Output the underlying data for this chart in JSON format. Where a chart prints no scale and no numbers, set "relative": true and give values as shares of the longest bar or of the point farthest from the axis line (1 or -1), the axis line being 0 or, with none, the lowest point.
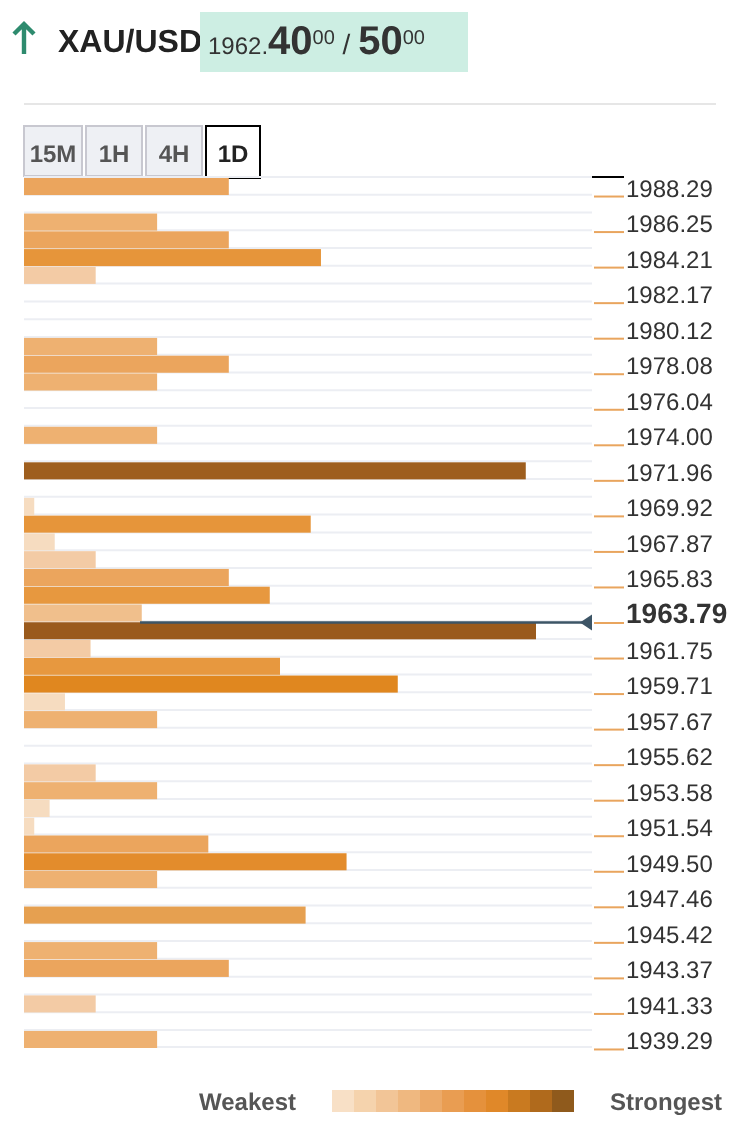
{
  "chart_data": {
    "type": "bar",
    "orientation": "horizontal",
    "relative": true,
    "title": "XAU/USD",
    "subtitle": "1962.40$^{00}$ / 50$^{00}$",
    "categories": [
      "1988.29",
      null,
      "1986.25",
      null,
      "1984.21",
      null,
      "1982.17",
      null,
      "1980.12",
      null,
      "1978.08",
      null,
      "1976.04",
      null,
      "1974.00",
      null,
      "1971.96",
      null,
      "1969.92",
      null,
      "1967.87",
      null,
      "1965.83",
      null,
      "1963.79",
      null,
      "1961.75",
      null,
      "1959.71",
      null,
      "1957.67",
      null,
      "1955.62",
      null,
      "1953.58",
      null,
      "1951.54",
      null,
      "1949.50",
      null,
      "1947.46",
      null,
      "1945.42",
      null,
      "1943.37",
      null,
      "1941.33",
      null,
      "1939.29"
    ],
    "values": [
      0.4,
      null,
      0.26,
      0.4,
      0.58,
      0.14,
      null,
      null,
      null,
      0.26,
      0.4,
      0.26,
      null,
      null,
      0.26,
      null,
      0.98,
      null,
      0.02,
      0.56,
      0.06,
      0.14,
      0.4,
      0.48,
      0.23,
      1,
      0.13,
      0.5,
      0.73,
      0.08,
      0.26,
      null,
      null,
      0.14,
      0.26,
      0.05,
      0.02,
      0.36,
      0.63,
      0.26,
      null,
      0.55,
      null,
      0.26,
      0.4,
      null,
      0.14,
      null,
      0.26
    ],
    "colors": [
      "#eba55d",
      null,
      "#eeb171",
      "#eba55d",
      "#e6953a",
      "#f3cba5",
      null,
      null,
      null,
      "#eeb171",
      "#eba55d",
      "#eeb171",
      null,
      null,
      "#eeb171",
      null,
      "#9e5e1e",
      null,
      "#f6dcc0",
      "#e6953a",
      "#f6dcc0",
      "#f3cba5",
      "#eba55d",
      "#e7983f",
      "#f0bf8c",
      "#9a5a1c",
      "#f3cba5",
      "#e7983f",
      "#e0871f",
      "#f6dcc0",
      "#eeb171",
      null,
      null,
      "#f3cba5",
      "#eeb171",
      "#f6dcc0",
      "#f6dcc0",
      "#eba55d",
      "#e38c2c",
      "#eeb171",
      null,
      "#e6a050",
      null,
      "#eeb171",
      "#eba55d",
      null,
      "#f3cba5",
      null,
      "#eeb171"
    ],
    "grid": "y",
    "ref_lines": [
      {
        "axis": "y",
        "value": "1963.79",
        "color": "#3d5566"
      }
    ],
    "annotations": [
      "15M",
      "1H",
      "4H",
      "1D",
      "Weakest",
      "Strongest"
    ]
  }
}
